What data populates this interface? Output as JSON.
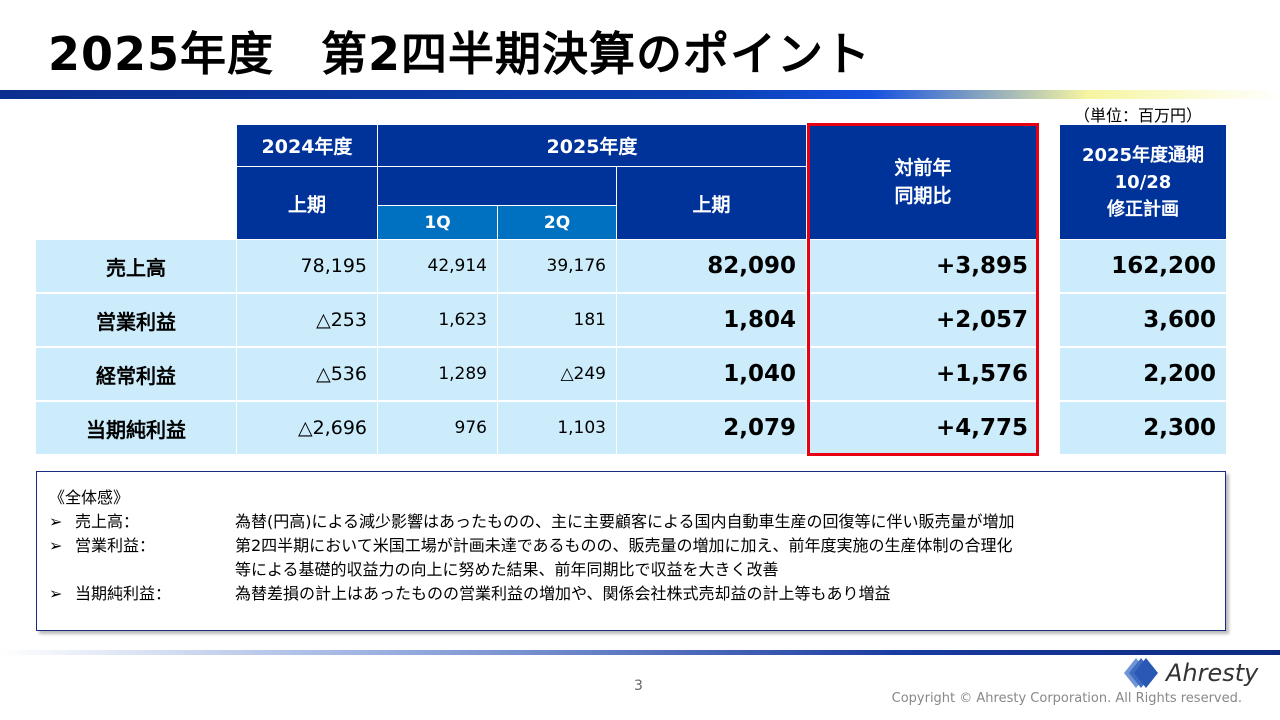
{
  "title": "2025年度　第2四半期決算のポイント",
  "unit": "（単位：百万円）",
  "header": {
    "fy2024": "2024年度",
    "fy2025": "2025年度",
    "h1_2024": "上期",
    "q1": "1Q",
    "q2": "2Q",
    "h1_2025": "上期",
    "yoy": "対前年\n同期比",
    "plan": "2025年度通期\n10/28\n修正計画"
  },
  "rows": [
    {
      "label": "売上高",
      "h1_2024": "78,195",
      "q1": "42,914",
      "q2": "39,176",
      "h1_2025": "82,090",
      "yoy": "+3,895",
      "plan": "162,200"
    },
    {
      "label": "営業利益",
      "h1_2024": "△253",
      "q1": "1,623",
      "q2": "181",
      "h1_2025": "1,804",
      "yoy": "+2,057",
      "plan": "3,600"
    },
    {
      "label": "経常利益",
      "h1_2024": "△536",
      "q1": "1,289",
      "q2": "△249",
      "h1_2025": "1,040",
      "yoy": "+1,576",
      "plan": "2,200"
    },
    {
      "label": "当期純利益",
      "h1_2024": "△2,696",
      "q1": "976",
      "q2": "1,103",
      "h1_2025": "2,079",
      "yoy": "+4,775",
      "plan": "2,300"
    }
  ],
  "notes": {
    "heading": "《全体感》",
    "bullet": "➢",
    "items": [
      {
        "key": "売上高：",
        "lines": [
          "為替(円高)による減少影響はあったものの、主に主要顧客による国内自動車生産の回復等に伴い販売量が増加"
        ]
      },
      {
        "key": "営業利益：",
        "lines": [
          "第2四半期において米国工場が計画未達であるものの、販売量の増加に加え、前年度実施の生産体制の合理化",
          "等による基礎的収益力の向上に努めた結果、前年同期比で収益を大きく改善"
        ]
      },
      {
        "key": "当期純利益：",
        "lines": [
          "為替差損の計上はあったものの営業利益の増加や、関係会社株式売却益の計上等もあり増益"
        ]
      }
    ]
  },
  "footer": {
    "page": "3",
    "copyright": "Copyright © Ahresty Corporation. All Rights reserved.",
    "logo": "Ahresty"
  },
  "colors": {
    "header": "#003399",
    "subheader": "#0070c0",
    "cell": "#ccecfb",
    "highlight": "#e60012"
  }
}
